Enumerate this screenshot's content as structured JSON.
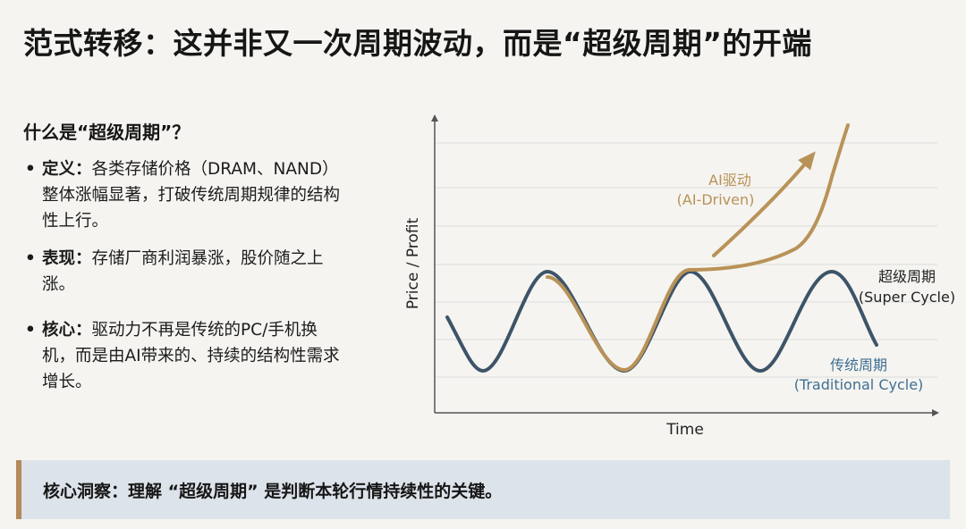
{
  "title": "范式转移：这并非又一次周期波动，而是“超级周期”的开端",
  "section": {
    "heading": "什么是“超级周期”？",
    "bullets": [
      {
        "label": "定义：",
        "text": "各类存储价格（DRAM、NAND）整体涨幅显著，打破传统周期规律的结构性上行。"
      },
      {
        "label": "表现：",
        "text": "存储厂商利润暴涨，股价随之上涨。"
      },
      {
        "label": "核心：",
        "text": "驱动力不再是传统的PC/手机换机，而是由AI带来的、持续的结构性需求增长。"
      }
    ]
  },
  "chart_data": {
    "type": "line",
    "xlabel": "Time",
    "ylabel": "Price / Profit",
    "series": [
      {
        "name": "传统周期 (Traditional Cycle)",
        "color": "#3d5468"
      },
      {
        "name": "超级周期 (Super Cycle)",
        "color": "#b89257"
      }
    ],
    "annotations": {
      "ai_line1": "AI驱动",
      "ai_line2": "(AI-Driven)",
      "super_line1": "超级周期",
      "super_line2": "(Super Cycle)",
      "trad_line1": "传统周期",
      "trad_line2": "(Traditional Cycle)"
    },
    "colors": {
      "traditional": "#3d5468",
      "super": "#b89257",
      "traditional_label": "#3f6f93",
      "ai_label": "#b89257"
    }
  },
  "insight": {
    "text": "核心洞察：理解 “超级周期” 是判断本轮行情持续性的关键。",
    "accent_color": "#b5895a"
  }
}
